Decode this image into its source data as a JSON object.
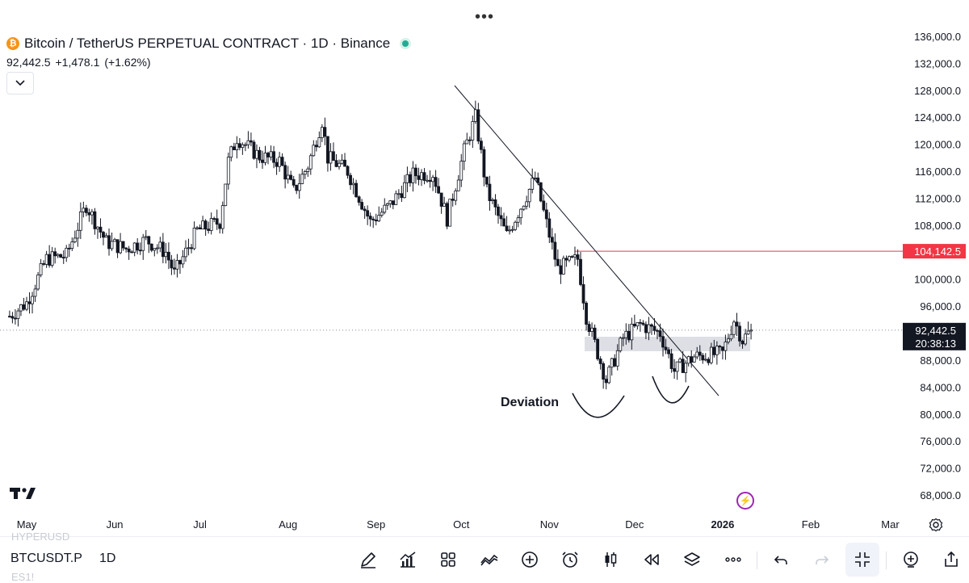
{
  "header": {
    "title": "Bitcoin / TetherUS PERPETUAL CONTRACT · 1D · Binance",
    "last_price": "92,442.5",
    "change": "+1,478.1",
    "change_pct": "(+1.62%)"
  },
  "colors": {
    "up_candle": "#ffffff",
    "down_candle": "#131722",
    "wick": "#131722",
    "resistance_line": "#f23645",
    "live_dot": "#22ab94",
    "flash_icon": "#9c27b0"
  },
  "chart_data": {
    "type": "candlestick",
    "symbol": "BTCUSDT.P",
    "interval": "1D",
    "y_ticks": [
      "136,000.0",
      "132,000.0",
      "128,000.0",
      "124,000.0",
      "120,000.0",
      "116,000.0",
      "112,000.0",
      "108,000.0",
      "104,142.5",
      "100,000.0",
      "96,000.0",
      "92,442.5",
      "88,000.0",
      "84,000.0",
      "80,000.0",
      "76,000.0",
      "72,000.0",
      "68,000.0"
    ],
    "x_ticks": [
      "May",
      "Jun",
      "Jul",
      "Aug",
      "Sep",
      "Oct",
      "Nov",
      "Dec",
      "2026",
      "Feb",
      "Mar"
    ],
    "ylim": [
      66000,
      138000
    ],
    "price_tag": {
      "value": 92442.5,
      "label": "92,442.5",
      "countdown": "20:38:13"
    },
    "resistance_tag": {
      "value": 104142.5,
      "label": "104,142.5"
    },
    "annotation": "Deviation",
    "closes": [
      {
        "date": "2025-04-25",
        "close": 94500
      },
      {
        "date": "2025-05-01",
        "close": 96500
      },
      {
        "date": "2025-05-08",
        "close": 103000
      },
      {
        "date": "2025-05-15",
        "close": 103500
      },
      {
        "date": "2025-05-22",
        "close": 111000
      },
      {
        "date": "2025-05-29",
        "close": 105500
      },
      {
        "date": "2025-06-05",
        "close": 104500
      },
      {
        "date": "2025-06-12",
        "close": 105800
      },
      {
        "date": "2025-06-19",
        "close": 104000
      },
      {
        "date": "2025-06-22",
        "close": 100800
      },
      {
        "date": "2025-06-30",
        "close": 107200
      },
      {
        "date": "2025-07-08",
        "close": 108500
      },
      {
        "date": "2025-07-11",
        "close": 117500
      },
      {
        "date": "2025-07-14",
        "close": 121000
      },
      {
        "date": "2025-07-22",
        "close": 118200
      },
      {
        "date": "2025-07-29",
        "close": 117500
      },
      {
        "date": "2025-08-03",
        "close": 113000
      },
      {
        "date": "2025-08-08",
        "close": 116800
      },
      {
        "date": "2025-08-13",
        "close": 123500
      },
      {
        "date": "2025-08-15",
        "close": 118000
      },
      {
        "date": "2025-08-22",
        "close": 116000
      },
      {
        "date": "2025-08-30",
        "close": 108500
      },
      {
        "date": "2025-09-06",
        "close": 111000
      },
      {
        "date": "2025-09-14",
        "close": 115500
      },
      {
        "date": "2025-09-21",
        "close": 115700
      },
      {
        "date": "2025-09-26",
        "close": 109000
      },
      {
        "date": "2025-10-02",
        "close": 119000
      },
      {
        "date": "2025-10-06",
        "close": 124000
      },
      {
        "date": "2025-10-10",
        "close": 113000
      },
      {
        "date": "2025-10-17",
        "close": 106500
      },
      {
        "date": "2025-10-27",
        "close": 115000
      },
      {
        "date": "2025-11-04",
        "close": 101500
      },
      {
        "date": "2025-11-11",
        "close": 103000
      },
      {
        "date": "2025-11-14",
        "close": 94500
      },
      {
        "date": "2025-11-21",
        "close": 85000
      },
      {
        "date": "2025-11-27",
        "close": 91300
      },
      {
        "date": "2025-12-03",
        "close": 93300
      },
      {
        "date": "2025-12-10",
        "close": 92000
      },
      {
        "date": "2025-12-15",
        "close": 86400
      },
      {
        "date": "2025-12-22",
        "close": 88500
      },
      {
        "date": "2026-01-01",
        "close": 89000
      },
      {
        "date": "2026-01-05",
        "close": 94000
      },
      {
        "date": "2026-01-08",
        "close": 91000
      },
      {
        "date": "2026-01-11",
        "close": 92442.5
      }
    ]
  },
  "bottom_bar": {
    "ghost_top": "HYPERUSD",
    "symbol": "BTCUSDT.P",
    "interval": "1D",
    "ghost_bottom": "ES1!",
    "icons": [
      "draw-icon",
      "indicators-icon",
      "layout-grid-icon",
      "compare-icon",
      "add-icon",
      "alert-icon",
      "candle-type-icon",
      "replay-icon",
      "layers-icon",
      "more-icon",
      "undo-icon",
      "redo-icon",
      "fullscreen-exit-icon",
      "add-alert-icon",
      "share-icon"
    ]
  }
}
